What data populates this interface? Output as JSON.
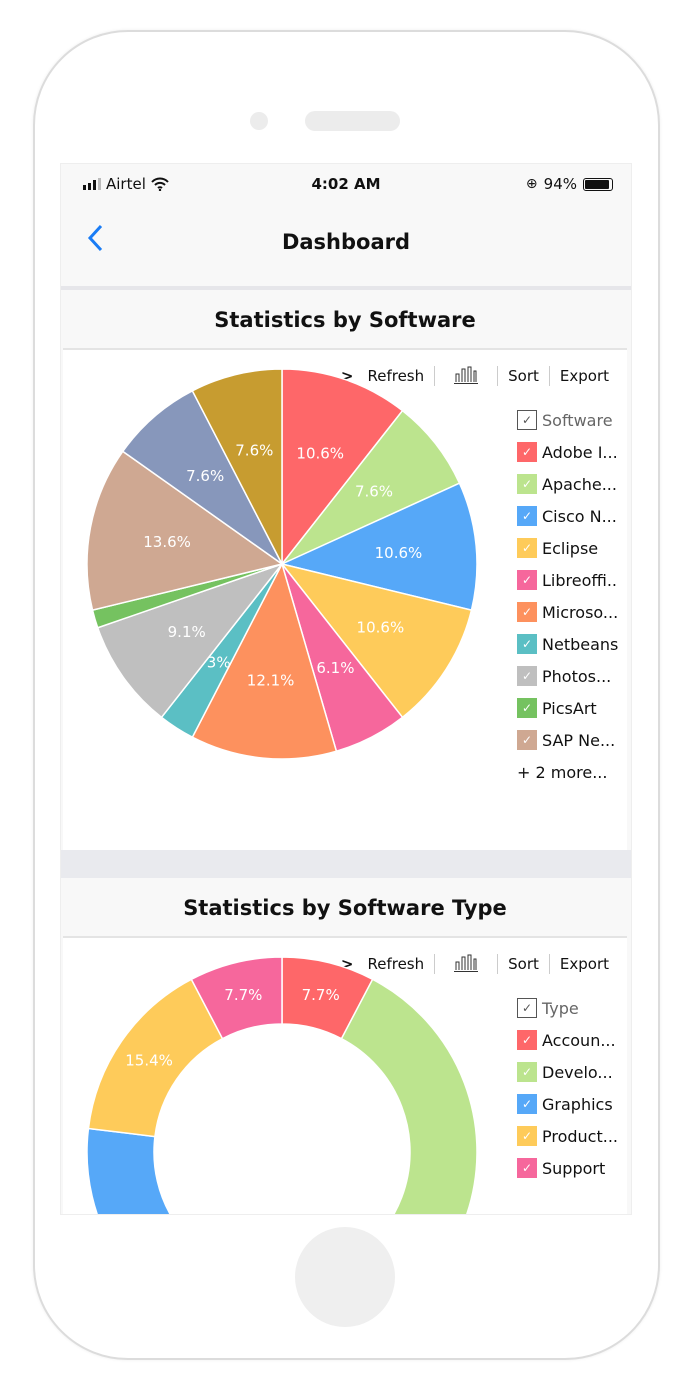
{
  "status_bar": {
    "carrier": "Airtel",
    "time": "4:02 AM",
    "battery": "94%",
    "battery_level": 0.94
  },
  "nav": {
    "title": "Dashboard",
    "back_icon": "chevron-left-icon"
  },
  "toolbar": {
    "refresh": "Refresh",
    "sort": "Sort",
    "export": "Export"
  },
  "colors": [
    "#fe6769",
    "#bce48e",
    "#56a8f8",
    "#fecb5a",
    "#f6679c",
    "#fd915e",
    "#5bbfc4",
    "#bfbfbf",
    "#75c260",
    "#cfa892",
    "#8797bb",
    "#c79c30"
  ],
  "chart_data": [
    {
      "type": "pie",
      "title": "Statistics by Software",
      "legend_title": "Software",
      "legend_placement": "right",
      "categories": [
        "Adobe I...",
        "Apache...",
        "Cisco N...",
        "Eclipse",
        "Libreoffi..",
        "Microso...",
        "Netbeans",
        "Photos...",
        "PicsArt",
        "SAP Ne...",
        "",
        ""
      ],
      "values": [
        10.6,
        7.6,
        10.6,
        10.6,
        6.1,
        12.1,
        3,
        9.1,
        1.5,
        13.6,
        7.6,
        7.6
      ],
      "labels": [
        "10.6%",
        "7.6%",
        "10.6%",
        "10.6%",
        "6.1%",
        "12.1%",
        "3%",
        "9.1%",
        "",
        "13.6%",
        "7.6%",
        "7.6%"
      ],
      "legend_visible": 10,
      "more": "+ 2 more..."
    },
    {
      "type": "pie",
      "subtype": "donut",
      "title": "Statistics by Software Type",
      "legend_title": "Type",
      "legend_placement": "right",
      "categories": [
        "Accoun...",
        "Develo...",
        "Graphics",
        "Product...",
        "Support"
      ],
      "values": [
        7.7,
        46.2,
        23.1,
        15.4,
        7.7
      ],
      "labels": [
        "7.7%",
        "",
        "",
        "15.4%",
        "7.7%"
      ]
    }
  ]
}
